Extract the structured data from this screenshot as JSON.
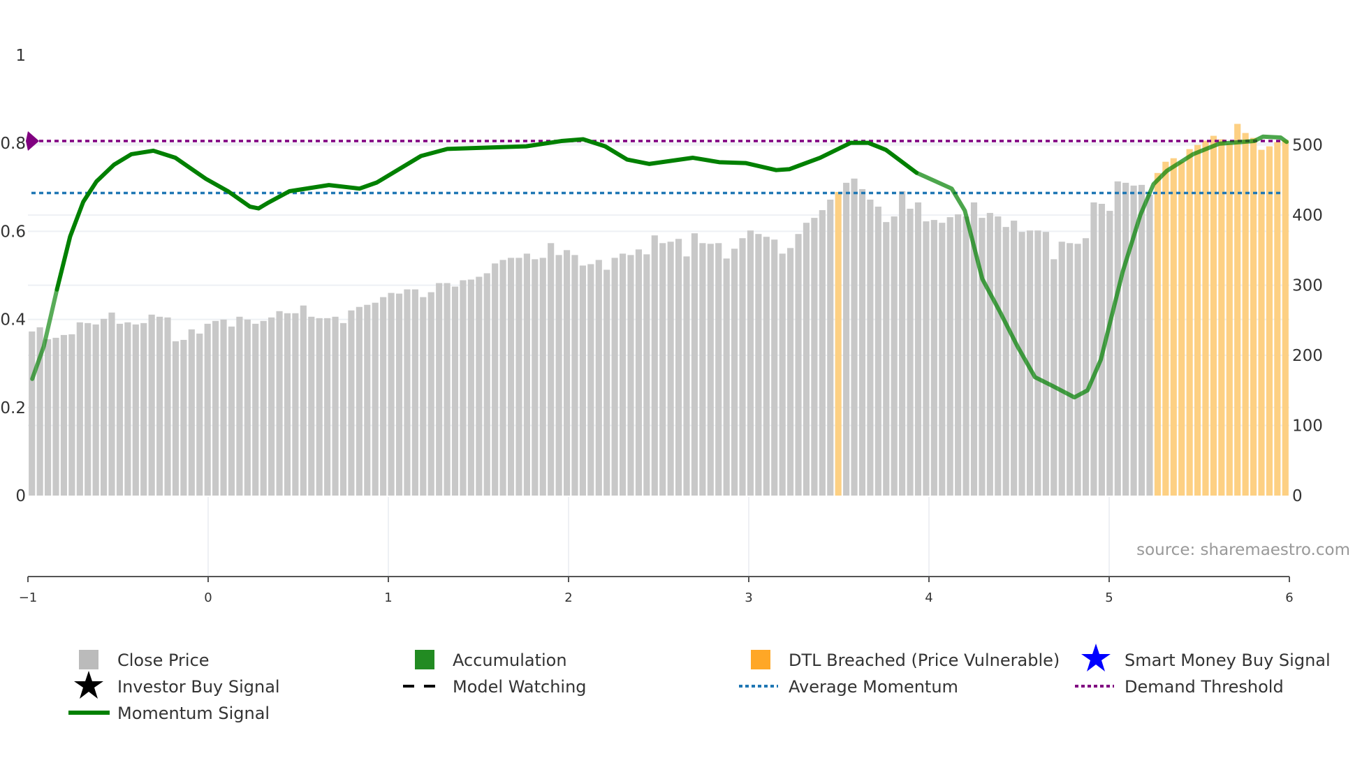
{
  "source_text": "source: sharemaestro.com",
  "legend": {
    "close_price": "Close Price",
    "accumulation": "Accumulation",
    "dtl_breached": "DTL Breached (Price Vulnerable)",
    "smart_money": "Smart Money Buy Signal",
    "investor_buy": "Investor Buy Signal",
    "model_watching": "Model Watching",
    "average_momentum": "Average Momentum",
    "demand_threshold": "Demand Threshold",
    "momentum_signal": "Momentum Signal"
  },
  "colors": {
    "close_price": "#c8c8c8",
    "dtl_breached": "#fdd083",
    "accumulation": "#228b22",
    "momentum": "#008000",
    "average_momentum": "#1f77b4",
    "demand_threshold": "#800080",
    "smart_money": "#0000ff"
  },
  "chart_data": {
    "type": "bar+line",
    "x_axis": {
      "range": [
        -1,
        6
      ],
      "ticks": [
        "−1",
        "0",
        "1",
        "2",
        "3",
        "4",
        "5",
        "6"
      ],
      "tick_values": [
        -1,
        0,
        1,
        2,
        3,
        4,
        5,
        6
      ]
    },
    "y_left": {
      "range": [
        0,
        1
      ],
      "ticks": [
        "0",
        "0.2",
        "0.4",
        "0.6",
        "0.8",
        "1"
      ],
      "tick_values": [
        0,
        0.2,
        0.4,
        0.6,
        0.8,
        1
      ]
    },
    "y_right": {
      "range": [
        0,
        628
      ],
      "ticks": [
        "0",
        "100",
        "200",
        "300",
        "400",
        "500"
      ],
      "tick_values": [
        0,
        100,
        200,
        300,
        400,
        500
      ]
    },
    "close_price": [
      234,
      240,
      223,
      225,
      229,
      230,
      247,
      246,
      244,
      252,
      261,
      245,
      247,
      244,
      246,
      258,
      255,
      254,
      220,
      222,
      237,
      231,
      245,
      249,
      251,
      241,
      255,
      251,
      245,
      249,
      254,
      263,
      260,
      260,
      271,
      255,
      253,
      253,
      255,
      246,
      264,
      269,
      272,
      275,
      283,
      289,
      288,
      294,
      294,
      283,
      290,
      303,
      303,
      298,
      307,
      308,
      312,
      317,
      331,
      336,
      339,
      339,
      345,
      337,
      339,
      360,
      343,
      350,
      343,
      328,
      330,
      336,
      322,
      339,
      345,
      343,
      351,
      344,
      371,
      360,
      362,
      366,
      341,
      374,
      360,
      359,
      360,
      338,
      352,
      367,
      378,
      373,
      369,
      365,
      345,
      353,
      373,
      389,
      396,
      407,
      422,
      433,
      446,
      452,
      437,
      422,
      412,
      390,
      398,
      434,
      409,
      418,
      391,
      393,
      389,
      397,
      401,
      398,
      418,
      396,
      403,
      398,
      383,
      392,
      376,
      378,
      378,
      376,
      337,
      362,
      360,
      359,
      367,
      418,
      416,
      406,
      448,
      446,
      442,
      443,
      429,
      460,
      476,
      481,
      476,
      494,
      500,
      506,
      513,
      508,
      502,
      530,
      517,
      510,
      493,
      498,
      504,
      507
    ],
    "dtl_breached_indices": [
      101,
      141,
      142,
      143,
      144,
      145,
      146,
      147,
      148,
      149,
      150,
      151,
      152,
      153,
      154,
      155,
      156,
      157
    ],
    "momentum_signal": {
      "x": [
        -0.976,
        -0.912,
        -0.839,
        -0.766,
        -0.693,
        -0.62,
        -0.523,
        -0.426,
        -0.304,
        -0.182,
        -0.012,
        0.11,
        0.232,
        0.28,
        0.329,
        0.451,
        0.67,
        0.84,
        0.937,
        1.181,
        1.327,
        1.765,
        1.96,
        2.081,
        2.203,
        2.325,
        2.447,
        2.69,
        2.836,
        2.982,
        3.152,
        3.225,
        3.396,
        3.566,
        3.663,
        3.761,
        3.931,
        4.126,
        4.199,
        4.296,
        4.393,
        4.491,
        4.588,
        4.686,
        4.807,
        4.88,
        4.954,
        5.075,
        5.173,
        5.246,
        5.319,
        5.465,
        5.611,
        5.805,
        5.854,
        5.951,
        5.985
      ],
      "y": [
        0.265,
        0.339,
        0.468,
        0.588,
        0.667,
        0.713,
        0.751,
        0.775,
        0.783,
        0.767,
        0.719,
        0.691,
        0.656,
        0.652,
        0.664,
        0.691,
        0.705,
        0.697,
        0.711,
        0.771,
        0.787,
        0.793,
        0.805,
        0.809,
        0.793,
        0.763,
        0.753,
        0.767,
        0.757,
        0.755,
        0.739,
        0.741,
        0.767,
        0.801,
        0.801,
        0.785,
        0.733,
        0.697,
        0.647,
        0.492,
        0.418,
        0.339,
        0.269,
        0.249,
        0.223,
        0.239,
        0.309,
        0.508,
        0.637,
        0.707,
        0.737,
        0.775,
        0.799,
        0.805,
        0.815,
        0.813,
        0.803
      ]
    },
    "average_momentum": 0.687,
    "demand_threshold": 0.805
  }
}
